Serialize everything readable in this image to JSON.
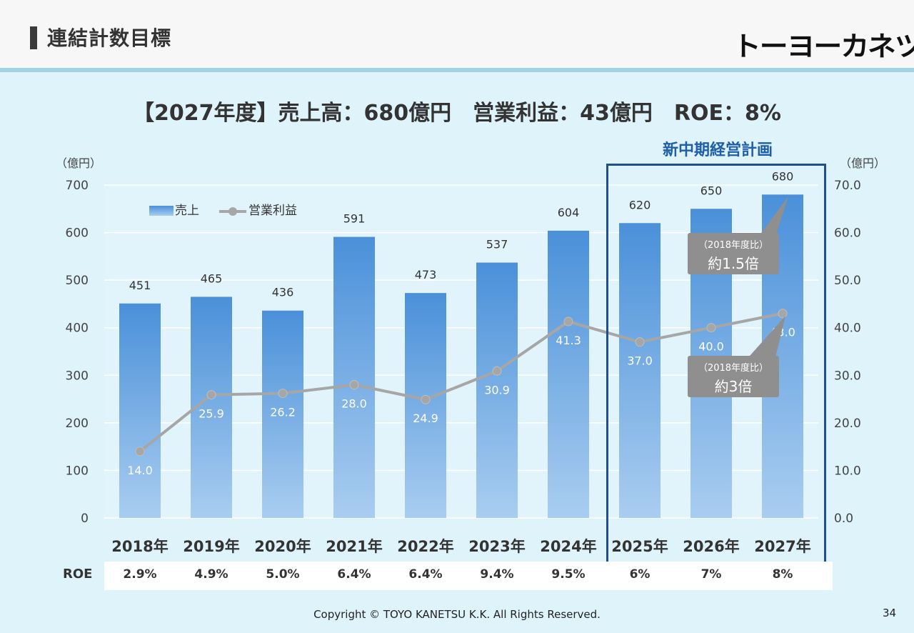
{
  "header": {
    "title": "連結計数目標",
    "logo": "トーヨーカネツ"
  },
  "headline": "【2027年度】売上高：680億円　営業利益：43億円　ROE：8%",
  "plan_label": "新中期経営計画",
  "callouts": [
    {
      "note": "（2018年度比）",
      "value": "約1.5倍"
    },
    {
      "note": "（2018年度比）",
      "value": "約3倍"
    }
  ],
  "roe": {
    "label": "ROE",
    "values": [
      "2.9%",
      "4.9%",
      "5.0%",
      "6.4%",
      "6.4%",
      "9.4%",
      "9.5%",
      "6%",
      "7%",
      "8%"
    ]
  },
  "chart_data": {
    "type": "bar",
    "categories": [
      "2018年",
      "2019年",
      "2020年",
      "2021年",
      "2022年",
      "2023年",
      "2024年",
      "2025年",
      "2026年",
      "2027年"
    ],
    "series": [
      {
        "name": "売上",
        "type": "bar",
        "axis": "left",
        "values": [
          451,
          465,
          436,
          591,
          473,
          537,
          604,
          620,
          650,
          680
        ]
      },
      {
        "name": "営業利益",
        "type": "line",
        "axis": "right",
        "values": [
          14.0,
          25.9,
          26.2,
          28.0,
          24.9,
          30.9,
          41.3,
          37.0,
          40.0,
          43.0
        ]
      }
    ],
    "y_left": {
      "unit": "（億円）",
      "range": [
        0,
        700
      ],
      "ticks": [
        "0",
        "100",
        "200",
        "300",
        "400",
        "500",
        "600",
        "700"
      ]
    },
    "y_right": {
      "unit": "（億円）",
      "range": [
        0,
        70
      ],
      "ticks": [
        "0.0",
        "10.0",
        "20.0",
        "30.0",
        "40.0",
        "50.0",
        "60.0",
        "70.0"
      ]
    },
    "legend_position": "top-left",
    "grid": true,
    "colors": {
      "bar_top": "#4a90d9",
      "bar_bottom": "#a9cdf0",
      "line": "#a6a6a6"
    }
  },
  "footer": {
    "copyright": "Copyright © TOYO KANETSU K.K. All Rights Reserved.",
    "page_number": "34"
  }
}
